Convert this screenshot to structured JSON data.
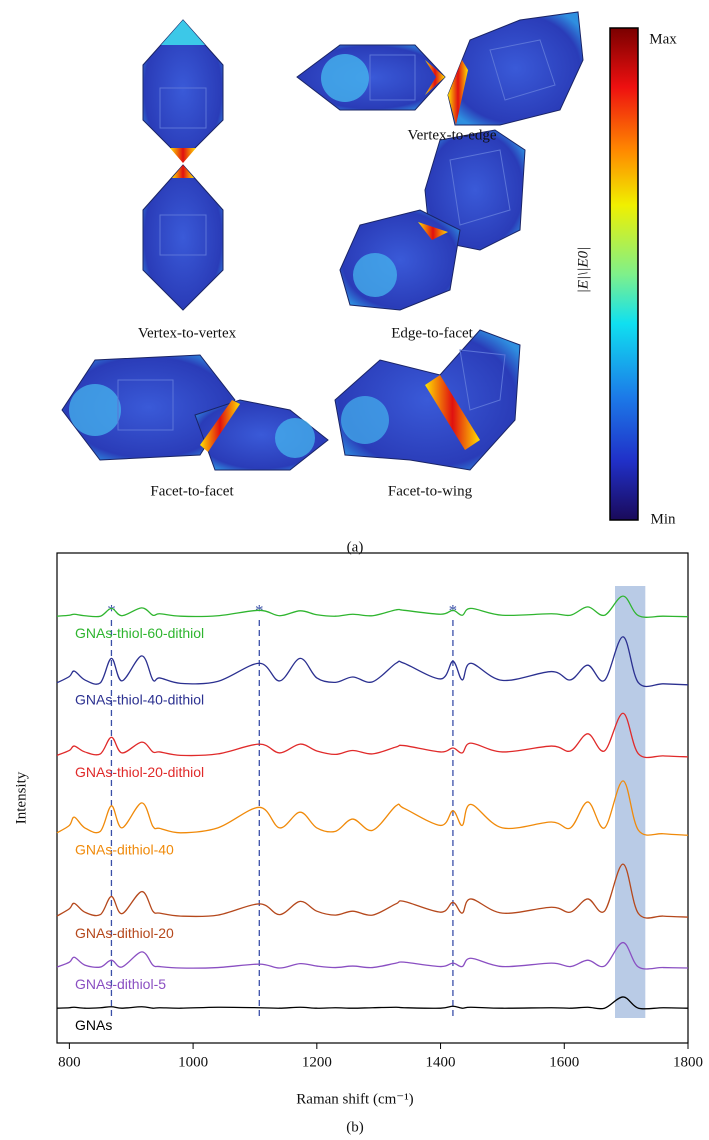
{
  "panel_a": {
    "labels": [
      "Vertex-to-vertex",
      "Vertex-to-edge",
      "Edge-to-facet",
      "Facet-to-facet",
      "Facet-to-wing"
    ],
    "colorbar": {
      "max": "Max",
      "min": "Min",
      "label": "|E|\\|E0|"
    },
    "caption": "(a)"
  },
  "chart_data": {
    "type": "line",
    "caption": "(b)",
    "xlabel": "Raman shift (cm⁻¹)",
    "ylabel": "Intensity",
    "x": [
      780,
      800,
      808,
      825,
      850,
      868,
      885,
      917,
      935,
      946,
      980,
      1040,
      1107,
      1140,
      1173,
      1200,
      1230,
      1258,
      1290,
      1328,
      1341,
      1400,
      1420,
      1435,
      1449,
      1500,
      1579,
      1610,
      1638,
      1665,
      1695,
      1720,
      1760,
      1800
    ],
    "xlim": [
      780,
      1800
    ],
    "xticks": [
      800,
      1000,
      1200,
      1400,
      1600,
      1800
    ],
    "ylim": [
      0,
      100
    ],
    "markers": [
      {
        "x": 868,
        "label": "*"
      },
      {
        "x": 1107,
        "label": "*"
      },
      {
        "x": 1420,
        "label": "*"
      }
    ],
    "marker_color": "#3a4fa8",
    "highlight": [
      1682,
      1731
    ],
    "highlight_color": "#b9cbe6",
    "series": [
      {
        "name": "GNAs-thiol-60-dithiol",
        "color": "#2fb52f",
        "values": [
          87.1,
          87.3,
          87.5,
          87.2,
          87.1,
          88.7,
          87.2,
          88.8,
          87.3,
          87.6,
          87.1,
          87.2,
          88.3,
          87.2,
          88.2,
          87.4,
          87.1,
          87.5,
          87.2,
          88.4,
          88.3,
          87.5,
          88.3,
          87.3,
          88.7,
          87.3,
          87.6,
          87.3,
          89.0,
          87.3,
          91.2,
          87.2,
          87.1,
          87.0
        ]
      },
      {
        "name": "GNAs-thiol-40-dithiol",
        "color": "#2b3090",
        "values": [
          73.5,
          74.8,
          75.9,
          74.1,
          73.5,
          78.5,
          73.9,
          79.0,
          74.1,
          74.5,
          73.4,
          73.8,
          77.5,
          73.9,
          78.5,
          74.5,
          73.6,
          74.7,
          73.7,
          77.5,
          77.5,
          74.3,
          77.9,
          74.1,
          77.5,
          74.0,
          75.8,
          74.1,
          77.1,
          74.0,
          82.9,
          73.5,
          73.3,
          73.1
        ]
      },
      {
        "name": "GNAs-thiol-20-dithiol",
        "color": "#e02a2a",
        "values": [
          58.7,
          59.7,
          60.6,
          59.4,
          59.0,
          62.4,
          59.2,
          61.4,
          59.4,
          59.4,
          58.7,
          59.0,
          61.0,
          59.2,
          61.0,
          59.6,
          58.9,
          59.7,
          59.0,
          60.4,
          60.7,
          59.4,
          60.2,
          59.2,
          61.2,
          59.4,
          60.6,
          59.6,
          63.1,
          59.6,
          67.3,
          59.0,
          58.6,
          58.4
        ]
      },
      {
        "name": "GNAs-dithiol-40",
        "color": "#f08a0a",
        "values": [
          42.9,
          44.4,
          46.1,
          43.9,
          43.2,
          48.4,
          43.9,
          49.0,
          44.2,
          43.8,
          42.9,
          43.9,
          48.1,
          43.9,
          47.1,
          43.9,
          43.2,
          45.7,
          43.4,
          48.4,
          47.9,
          44.4,
          47.4,
          44.4,
          48.7,
          43.9,
          45.1,
          43.9,
          49.2,
          43.9,
          53.5,
          43.4,
          42.7,
          42.4
        ]
      },
      {
        "name": "GNAs-dithiol-20",
        "color": "#b5481c",
        "values": [
          25.9,
          27.4,
          28.5,
          26.7,
          26.2,
          29.9,
          26.4,
          30.9,
          26.9,
          26.5,
          25.9,
          26.1,
          28.4,
          26.2,
          28.9,
          26.9,
          26.1,
          26.9,
          26.1,
          28.4,
          28.9,
          26.7,
          28.7,
          26.5,
          29.4,
          26.5,
          27.7,
          26.7,
          29.4,
          26.9,
          36.5,
          26.4,
          25.9,
          25.7
        ]
      },
      {
        "name": "GNAs-dithiol-5",
        "color": "#8a4fc2",
        "values": [
          15.5,
          16.5,
          17.5,
          15.9,
          15.5,
          16.9,
          15.5,
          18.6,
          15.9,
          15.6,
          15.3,
          15.4,
          16.1,
          15.3,
          16.2,
          15.7,
          15.4,
          15.7,
          15.4,
          16.3,
          16.5,
          15.6,
          16.3,
          15.6,
          17.3,
          15.6,
          16.3,
          15.6,
          16.9,
          15.7,
          20.5,
          15.5,
          15.4,
          15.3
        ]
      },
      {
        "name": "GNAs",
        "color": "#000000",
        "values": [
          7.1,
          7.2,
          7.3,
          7.1,
          7.2,
          7.4,
          7.1,
          7.4,
          7.1,
          7.2,
          7.1,
          7.3,
          7.2,
          7.1,
          7.3,
          7.1,
          7.2,
          7.1,
          7.2,
          7.3,
          7.2,
          7.1,
          7.5,
          7.1,
          7.3,
          7.1,
          7.2,
          7.1,
          7.3,
          7.1,
          9.4,
          7.1,
          7.2,
          7.1
        ]
      }
    ]
  }
}
